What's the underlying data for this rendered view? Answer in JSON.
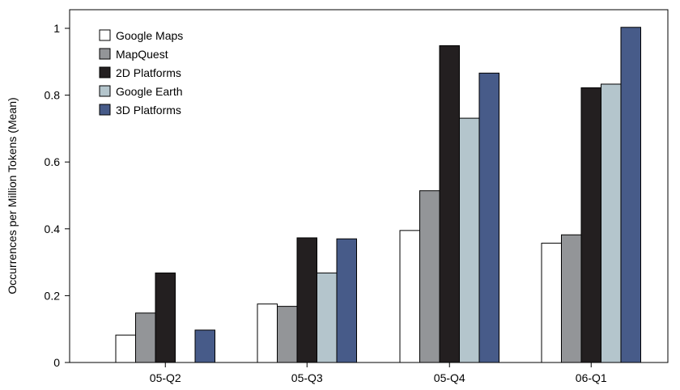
{
  "chart_data": {
    "type": "bar",
    "title": "",
    "xlabel": "",
    "ylabel": "Occurrences per Million Tokens (Mean)",
    "ylim": [
      0,
      1
    ],
    "yticks": [
      0,
      0.2,
      0.4,
      0.6,
      0.8,
      1
    ],
    "ytick_labels": [
      "0",
      "0.2",
      "0.4",
      "0.6",
      "0.8",
      "1"
    ],
    "categories": [
      "05-Q2",
      "05-Q3",
      "05-Q4",
      "06-Q1"
    ],
    "grid": false,
    "legend_position": "top-left",
    "series": [
      {
        "name": "Google Maps",
        "color": "#ffffff",
        "values": [
          0.082,
          0.175,
          0.395,
          0.357
        ]
      },
      {
        "name": "MapQuest",
        "color": "#939598",
        "values": [
          0.148,
          0.168,
          0.514,
          0.382
        ]
      },
      {
        "name": "2D Platforms",
        "color": "#231f20",
        "values": [
          0.268,
          0.373,
          0.948,
          0.822
        ]
      },
      {
        "name": "Google Earth",
        "color": "#b4c5cc",
        "values": [
          0.0,
          0.268,
          0.731,
          0.833
        ]
      },
      {
        "name": "3D Platforms",
        "color": "#475b89",
        "values": [
          0.097,
          0.37,
          0.866,
          1.003
        ]
      }
    ]
  }
}
